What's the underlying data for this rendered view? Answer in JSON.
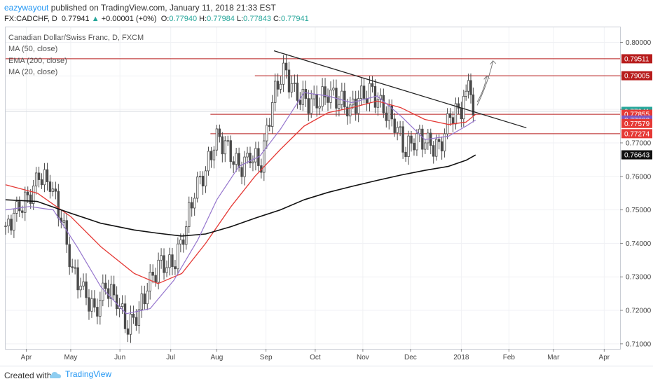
{
  "header": {
    "username": "eazywayout",
    "published": "published on TradingView.com, January 11, 2018 21:33 EST"
  },
  "quote": {
    "symbol": "FX:CADCHF, D",
    "last": "0.77941",
    "change": "+0.00001 (+0%)",
    "o_label": "O:",
    "o_value": "0.77940",
    "h_label": "H:",
    "h_value": "0.77984",
    "l_label": "L:",
    "l_value": "0.77843",
    "c_label": "C:",
    "c_value": "0.77941",
    "up_color": "#26a69a"
  },
  "footer": {
    "created_with": "Created with",
    "brand": "TradingView"
  },
  "chart_data": {
    "type": "candlestick",
    "title": "Canadian Dollar/Swiss Franc, D, FXCM",
    "indicators": [
      {
        "label": "MA (50, close)",
        "color": "#e53935"
      },
      {
        "label": "EMA (200, close)",
        "color": "#111111"
      },
      {
        "label": "MA (20, close)",
        "color": "#9575cd"
      }
    ],
    "x_labels": [
      "Apr",
      "May",
      "Jun",
      "Jul",
      "Aug",
      "Sep",
      "Oct",
      "Nov",
      "Dec",
      "2018",
      "Feb",
      "Mar",
      "Apr"
    ],
    "y_ticks": [
      "0.80000",
      "0.79000",
      "0.78000",
      "0.77000",
      "0.76000",
      "0.75000",
      "0.74000",
      "0.73000",
      "0.72000",
      "0.71000"
    ],
    "ylim": [
      0.7085,
      0.8045
    ],
    "price_tags": [
      {
        "value": "0.79511",
        "color": "#b71c1c"
      },
      {
        "value": "0.79005",
        "color": "#b71c1c"
      },
      {
        "value": "0.77941",
        "color": "#26a69a"
      },
      {
        "value": "0.77855",
        "color": "#e53935"
      },
      {
        "value": "0.77682",
        "color": "#7e57c2"
      },
      {
        "value": "0.77579",
        "color": "#e53935"
      },
      {
        "value": "0.77274",
        "color": "#e53935"
      },
      {
        "value": "0.76643",
        "color": "#111111"
      }
    ],
    "horizontal_levels": [
      0.79511,
      0.79005,
      0.77855,
      0.77274
    ],
    "trendline": {
      "from": [
        "2017-09-06",
        0.7975
      ],
      "to": [
        "2018-02-12",
        0.7745
      ]
    },
    "arrows": [
      {
        "from": [
          "2018-01-12",
          0.7812
        ],
        "to": [
          "2018-01-22",
          0.7945
        ]
      },
      {
        "from": [
          "2018-01-12",
          0.7822
        ],
        "to": [
          "2018-01-18",
          0.79
        ]
      }
    ],
    "up_color": "#26a69a",
    "down_color": "#e53935",
    "candle_color": "#4a4a4a",
    "series": [
      {
        "name": "price_close",
        "points": [
          [
            "2017-03-21",
            0.744
          ],
          [
            "2017-03-28",
            0.75
          ],
          [
            "2017-04-04",
            0.753
          ],
          [
            "2017-04-11",
            0.76
          ],
          [
            "2017-04-18",
            0.758
          ],
          [
            "2017-04-25",
            0.748
          ],
          [
            "2017-05-02",
            0.732
          ],
          [
            "2017-05-09",
            0.726
          ],
          [
            "2017-05-16",
            0.719
          ],
          [
            "2017-05-23",
            0.727
          ],
          [
            "2017-05-30",
            0.723
          ],
          [
            "2017-06-06",
            0.715
          ],
          [
            "2017-06-13",
            0.72
          ],
          [
            "2017-06-20",
            0.729
          ],
          [
            "2017-06-27",
            0.734
          ],
          [
            "2017-07-04",
            0.733
          ],
          [
            "2017-07-11",
            0.742
          ],
          [
            "2017-07-18",
            0.756
          ],
          [
            "2017-07-25",
            0.762
          ],
          [
            "2017-08-01",
            0.772
          ],
          [
            "2017-08-08",
            0.768
          ],
          [
            "2017-08-15",
            0.762
          ],
          [
            "2017-08-22",
            0.766
          ],
          [
            "2017-08-29",
            0.764
          ],
          [
            "2017-09-05",
            0.783
          ],
          [
            "2017-09-12",
            0.792
          ],
          [
            "2017-09-19",
            0.785
          ],
          [
            "2017-09-26",
            0.782
          ],
          [
            "2017-10-03",
            0.782
          ],
          [
            "2017-10-10",
            0.785
          ],
          [
            "2017-10-17",
            0.783
          ],
          [
            "2017-10-24",
            0.78
          ],
          [
            "2017-10-31",
            0.784
          ],
          [
            "2017-11-07",
            0.785
          ],
          [
            "2017-11-14",
            0.78
          ],
          [
            "2017-11-21",
            0.776
          ],
          [
            "2017-11-28",
            0.768
          ],
          [
            "2017-12-05",
            0.772
          ],
          [
            "2017-12-12",
            0.77
          ],
          [
            "2017-12-19",
            0.768
          ],
          [
            "2017-12-26",
            0.778
          ],
          [
            "2018-01-02",
            0.78
          ],
          [
            "2018-01-05",
            0.788
          ],
          [
            "2018-01-11",
            0.7794
          ]
        ]
      },
      {
        "name": "MA (50, close)",
        "points": [
          [
            "2017-03-21",
            0.7575
          ],
          [
            "2017-04-10",
            0.755
          ],
          [
            "2017-05-01",
            0.748
          ],
          [
            "2017-05-20",
            0.739
          ],
          [
            "2017-06-10",
            0.731
          ],
          [
            "2017-06-25",
            0.728
          ],
          [
            "2017-07-10",
            0.731
          ],
          [
            "2017-07-25",
            0.74
          ],
          [
            "2017-08-10",
            0.751
          ],
          [
            "2017-08-25",
            0.76
          ],
          [
            "2017-09-10",
            0.768
          ],
          [
            "2017-09-25",
            0.775
          ],
          [
            "2017-10-10",
            0.779
          ],
          [
            "2017-10-25",
            0.7805
          ],
          [
            "2017-11-10",
            0.7825
          ],
          [
            "2017-11-25",
            0.7805
          ],
          [
            "2017-12-10",
            0.777
          ],
          [
            "2017-12-25",
            0.7755
          ],
          [
            "2018-01-05",
            0.7762
          ],
          [
            "2018-01-11",
            0.7785
          ]
        ]
      },
      {
        "name": "EMA (200, close)",
        "points": [
          [
            "2017-03-21",
            0.753
          ],
          [
            "2017-04-10",
            0.7525
          ],
          [
            "2017-05-01",
            0.749
          ],
          [
            "2017-05-20",
            0.746
          ],
          [
            "2017-06-10",
            0.744
          ],
          [
            "2017-06-25",
            0.743
          ],
          [
            "2017-07-10",
            0.7422
          ],
          [
            "2017-07-25",
            0.7428
          ],
          [
            "2017-08-10",
            0.745
          ],
          [
            "2017-08-25",
            0.7475
          ],
          [
            "2017-09-10",
            0.75
          ],
          [
            "2017-09-25",
            0.753
          ],
          [
            "2017-10-10",
            0.7552
          ],
          [
            "2017-10-25",
            0.757
          ],
          [
            "2017-11-10",
            0.7588
          ],
          [
            "2017-11-25",
            0.7604
          ],
          [
            "2017-12-10",
            0.7618
          ],
          [
            "2017-12-25",
            0.763
          ],
          [
            "2018-01-05",
            0.7648
          ],
          [
            "2018-01-11",
            0.7664
          ]
        ]
      },
      {
        "name": "MA (20, close)",
        "points": [
          [
            "2017-03-21",
            0.75
          ],
          [
            "2017-04-05",
            0.751
          ],
          [
            "2017-04-20",
            0.75
          ],
          [
            "2017-05-05",
            0.739
          ],
          [
            "2017-05-20",
            0.727
          ],
          [
            "2017-06-05",
            0.719
          ],
          [
            "2017-06-20",
            0.7205
          ],
          [
            "2017-07-05",
            0.729
          ],
          [
            "2017-07-20",
            0.741
          ],
          [
            "2017-08-01",
            0.753
          ],
          [
            "2017-08-15",
            0.763
          ],
          [
            "2017-08-28",
            0.766
          ],
          [
            "2017-09-10",
            0.774
          ],
          [
            "2017-09-25",
            0.785
          ],
          [
            "2017-10-10",
            0.784
          ],
          [
            "2017-10-25",
            0.782
          ],
          [
            "2017-11-10",
            0.784
          ],
          [
            "2017-11-25",
            0.778
          ],
          [
            "2017-12-10",
            0.771
          ],
          [
            "2017-12-25",
            0.772
          ],
          [
            "2018-01-05",
            0.775
          ],
          [
            "2018-01-11",
            0.7768
          ]
        ]
      }
    ]
  }
}
